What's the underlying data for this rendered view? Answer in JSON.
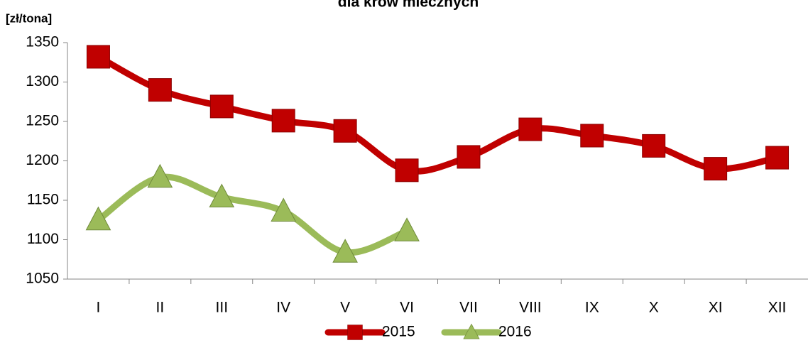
{
  "chart_data": {
    "type": "line",
    "title": "dla krów mlecznych",
    "y_label": "[zł/tona]",
    "categories": [
      "I",
      "II",
      "III",
      "IV",
      "V",
      "VI",
      "VII",
      "VIII",
      "IX",
      "X",
      "XI",
      "XII"
    ],
    "series": [
      {
        "name": "2015",
        "color": "#c00000",
        "marker": "square",
        "values": [
          1332,
          1290,
          1269,
          1251,
          1238,
          1188,
          1205,
          1240,
          1232,
          1219,
          1190,
          1204
        ]
      },
      {
        "name": "2016",
        "color": "#9bbb59",
        "marker": "triangle",
        "values": [
          1125,
          1179,
          1154,
          1136,
          1084,
          1111,
          null,
          null,
          null,
          null,
          null,
          null
        ]
      }
    ],
    "ylim": [
      1050,
      1350
    ],
    "yticks": [
      1050,
      1100,
      1150,
      1200,
      1250,
      1300,
      1350
    ],
    "grid": false,
    "legend": "bottom"
  }
}
